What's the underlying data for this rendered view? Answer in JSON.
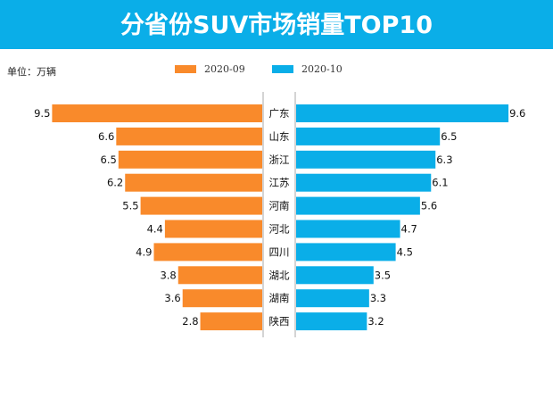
{
  "header": {
    "title": "分省份SUV市场销量TOP10"
  },
  "unit_label": "单位：万辆",
  "colors": {
    "series1": "#f98a2b",
    "series2": "#0aaee8"
  },
  "chart_data": {
    "type": "bar",
    "orientation": "horizontal-butterfly",
    "title": "分省份SUV市场销量TOP10",
    "unit": "万辆",
    "legend_position": "top-center",
    "categories": [
      "广东",
      "山东",
      "浙江",
      "江苏",
      "河南",
      "河北",
      "四川",
      "湖北",
      "湖南",
      "陕西"
    ],
    "series": [
      {
        "name": "2020-09",
        "values": [
          9.5,
          6.6,
          6.5,
          6.2,
          5.5,
          4.4,
          4.9,
          3.8,
          3.6,
          2.8
        ]
      },
      {
        "name": "2020-10",
        "values": [
          9.6,
          6.5,
          6.3,
          6.1,
          5.6,
          4.7,
          4.5,
          3.5,
          3.3,
          3.2
        ]
      }
    ],
    "xlim": [
      0,
      10
    ]
  }
}
